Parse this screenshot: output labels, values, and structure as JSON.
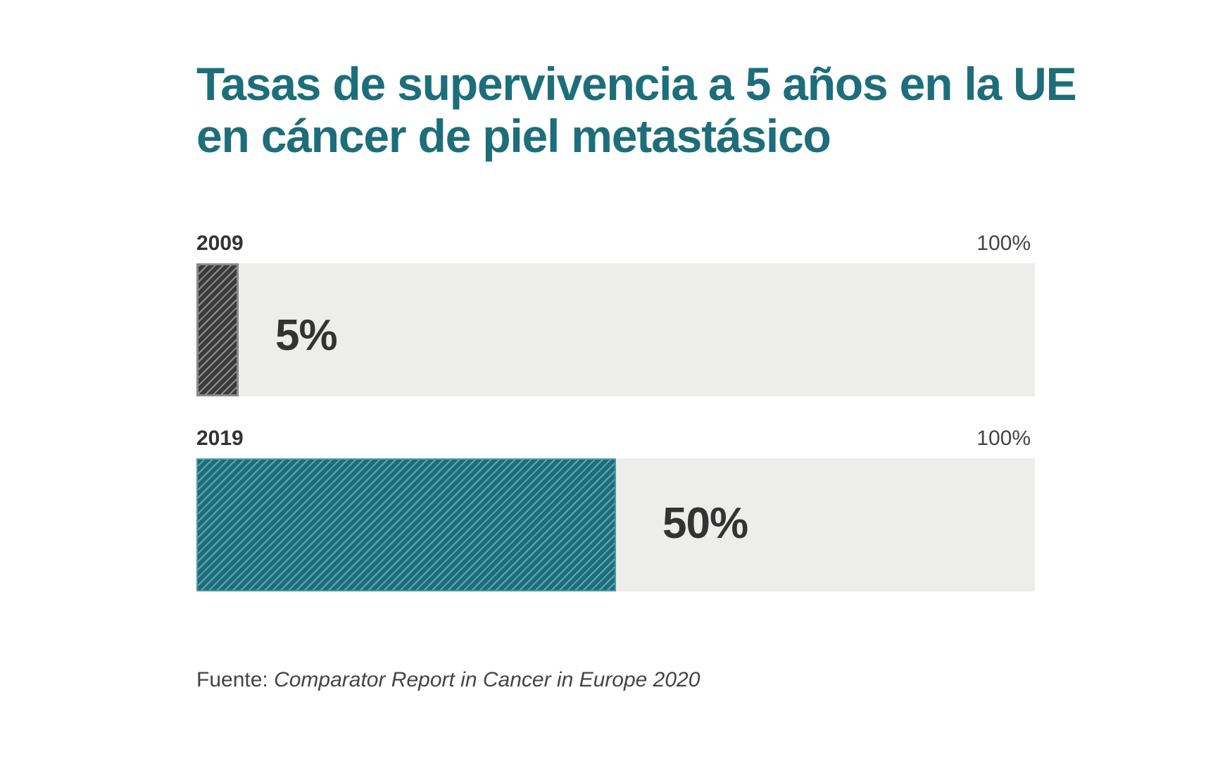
{
  "chart_data": {
    "type": "bar",
    "orientation": "horizontal",
    "title_lines": [
      "Tasas de supervivencia a 5 años en la UE",
      "en cáncer de piel metastásico"
    ],
    "categories": [
      "2009",
      "2019"
    ],
    "values": [
      5,
      50
    ],
    "value_labels": [
      "5%",
      "50%"
    ],
    "max_labels": [
      "100%",
      "100%"
    ],
    "xlim": [
      0,
      100
    ],
    "unit": "%",
    "colors": {
      "2009": "#3b3b3b",
      "2019": "#1d6e7a",
      "track": "#ededeb",
      "title": "#1d6e7a"
    },
    "legend": "none",
    "grid": false
  },
  "source": {
    "prefix": "Fuente: ",
    "text": "Comparator Report in Cancer in Europe 2020"
  }
}
